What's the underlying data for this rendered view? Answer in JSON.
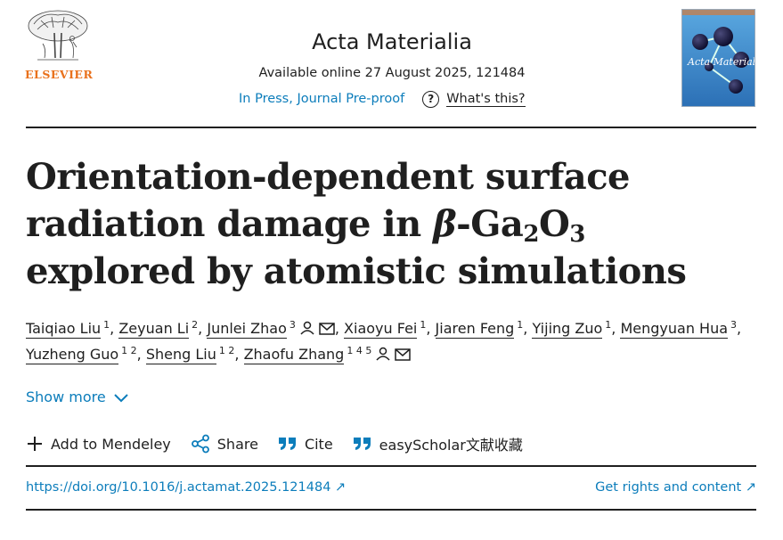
{
  "header": {
    "publisher": "ELSEVIER",
    "journal": "Acta Materialia",
    "available": "Available online 27 August 2025, 121484",
    "status": "In Press, Journal Pre-proof",
    "whats_this": "What's this?",
    "cover_title": "Acta Materialia"
  },
  "article": {
    "title_part1": "Orientation-dependent surface radiation damage in ",
    "title_beta": "β",
    "title_part2": "-Ga",
    "title_sub1": "2",
    "title_part3": "O",
    "title_sub2": "3",
    "title_part4": " explored by atomistic simulations"
  },
  "authors": [
    {
      "name": "Taiqiao Liu",
      "aff": "1",
      "sep": ","
    },
    {
      "name": "Zeyuan Li",
      "aff": "2",
      "sep": ","
    },
    {
      "name": "Junlei Zhao",
      "aff": "3",
      "sep": ","
    },
    {
      "name": "Xiaoyu Fei",
      "aff": "1",
      "sep": ","
    },
    {
      "name": "Jiaren Feng",
      "aff": "1",
      "sep": ","
    },
    {
      "name": "Yijing Zuo",
      "aff": "1",
      "sep": ","
    },
    {
      "name": "Mengyuan Hua",
      "aff": "3",
      "sep": ","
    },
    {
      "name": "Yuzheng Guo",
      "aff": "1 2",
      "sep": ","
    },
    {
      "name": "Sheng Liu",
      "aff": "1 2",
      "sep": ","
    },
    {
      "name": "Zhaofu Zhang",
      "aff": "1 4 5",
      "sep": ""
    }
  ],
  "show_more": "Show more",
  "actions": {
    "mendeley": "Add to Mendeley",
    "share": "Share",
    "cite": "Cite",
    "easyscholar": "easyScholar文献收藏"
  },
  "links": {
    "doi": "https://doi.org/10.1016/j.actamat.2025.121484 ↗",
    "rights": "Get rights and content ↗"
  },
  "colors": {
    "link": "#0c7dbb",
    "publisher": "#e9711c",
    "text": "#1f1f1f"
  }
}
